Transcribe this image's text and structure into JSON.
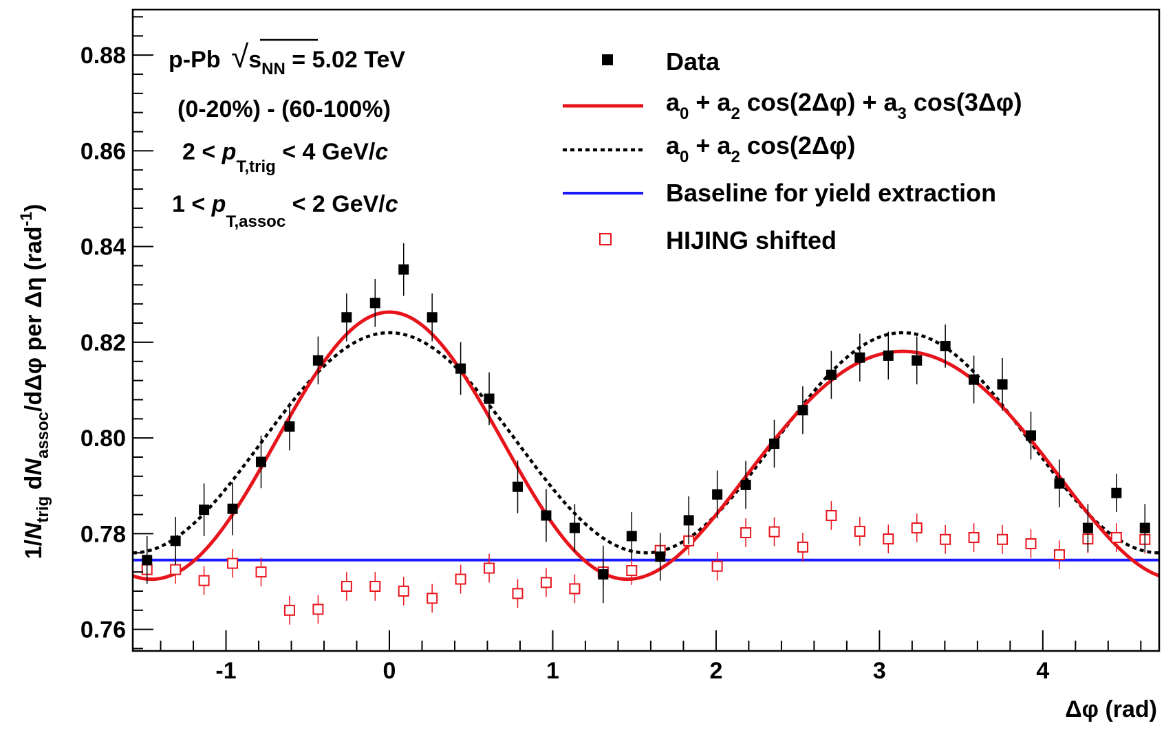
{
  "chart_data": {
    "type": "scatter",
    "title": "",
    "xlabel": "Δφ (rad)",
    "ylabel": "1/N_trig dN_assoc/dΔφ per Δη (rad^-1)",
    "xlim": [
      -1.5708,
      4.7124
    ],
    "ylim": [
      0.7555,
      0.8895
    ],
    "xticks": [
      -1,
      0,
      1,
      2,
      3,
      4
    ],
    "xtick_labels": [
      "-1",
      "0",
      "1",
      "2",
      "3",
      "4"
    ],
    "yticks": [
      0.76,
      0.78,
      0.8,
      0.82,
      0.84,
      0.86,
      0.88
    ],
    "ytick_labels": [
      "0.76",
      "0.78",
      "0.80",
      "0.82",
      "0.84",
      "0.86",
      "0.88"
    ],
    "grid": false,
    "legend_position": "top-right",
    "annotations": {
      "system": "p-Pb",
      "energy_symbol": "s",
      "energy_subscript": "NN",
      "energy_value": " = 5.02 TeV",
      "centrality": "(0-20%) - (60-100%)",
      "trig_left": "2 < ",
      "trig_p": "p",
      "trig_sub": "T,trig",
      "trig_right": " < 4 GeV/",
      "trig_c": "c",
      "assoc_left": "1 < ",
      "assoc_p": "p",
      "assoc_sub": "T,assoc",
      "assoc_right": " < 2 GeV/",
      "assoc_c": "c"
    },
    "axis_text": {
      "x_title": "Δφ (rad)",
      "y_prefix": "1/",
      "y_N1": "N",
      "y_sub1": "trig",
      "y_mid": " d",
      "y_N2": "N",
      "y_sub2": "assoc",
      "y_rest": "/dΔφ per Δη (rad",
      "y_sup": "-1",
      "y_close": ")"
    },
    "legend": {
      "data": "Data",
      "fit_full_a0": "a",
      "fit_full_s0": "0",
      "fit_full_mid": " + a",
      "fit_full_s2": "2",
      "fit_full_cos2": " cos(2Δφ) + a",
      "fit_full_s3": "3",
      "fit_full_cos3": " cos(3Δφ)",
      "fit_v2_a0": "a",
      "fit_v2_s0": "0",
      "fit_v2_mid": " + a",
      "fit_v2_s2": "2",
      "fit_v2_cos2": " cos(2Δφ)",
      "baseline": "Baseline for yield extraction",
      "hijing": "HIJING shifted"
    },
    "colors": {
      "data": "#000000",
      "fit_full": "#e8141c",
      "fit_v2": "#000000",
      "baseline": "#1a1aff",
      "hijing": "#e8141c"
    },
    "fits": {
      "full": {
        "a0": 0.7967,
        "a2": 0.0255,
        "a3": 0.0041
      },
      "v2_only": {
        "a0": 0.799,
        "a2": 0.023
      },
      "baseline": 0.7745
    },
    "series": [
      {
        "name": "Data",
        "x": [
          -1.4835,
          -1.309,
          -1.1345,
          -0.9599,
          -0.7854,
          -0.6109,
          -0.4363,
          -0.2618,
          -0.0873,
          0.0873,
          0.2618,
          0.4363,
          0.6109,
          0.7854,
          0.9599,
          1.1345,
          1.309,
          1.4835,
          1.6581,
          1.8326,
          2.0071,
          2.1817,
          2.3562,
          2.5307,
          2.7053,
          2.8798,
          3.0543,
          3.2289,
          3.4034,
          3.5779,
          3.7525,
          3.927,
          4.1015,
          4.2761,
          4.4506,
          4.6251
        ],
        "y": [
          0.7745,
          0.7785,
          0.785,
          0.7852,
          0.795,
          0.8024,
          0.8162,
          0.8252,
          0.8282,
          0.8352,
          0.8252,
          0.8145,
          0.8082,
          0.7898,
          0.7838,
          0.7812,
          0.7715,
          0.7795,
          0.7752,
          0.7828,
          0.7882,
          0.7902,
          0.7988,
          0.8058,
          0.8132,
          0.8168,
          0.8172,
          0.8162,
          0.8192,
          0.8122,
          0.8112,
          0.8005,
          0.7905,
          0.7812,
          0.7885,
          0.7812
        ],
        "err": [
          0.005,
          0.005,
          0.0055,
          0.0055,
          0.0055,
          0.005,
          0.005,
          0.005,
          0.005,
          0.0055,
          0.005,
          0.0055,
          0.0055,
          0.0055,
          0.0055,
          0.005,
          0.006,
          0.005,
          0.005,
          0.005,
          0.005,
          0.005,
          0.005,
          0.005,
          0.005,
          0.005,
          0.005,
          0.005,
          0.0045,
          0.005,
          0.0055,
          0.005,
          0.005,
          0.005,
          0.004,
          0.005
        ]
      },
      {
        "name": "HIJING shifted",
        "x": [
          -1.4835,
          -1.309,
          -1.1345,
          -0.9599,
          -0.7854,
          -0.6109,
          -0.4363,
          -0.2618,
          -0.0873,
          0.0873,
          0.2618,
          0.4363,
          0.6109,
          0.7854,
          0.9599,
          1.1345,
          1.309,
          1.4835,
          1.6581,
          1.8326,
          2.0071,
          2.1817,
          2.3562,
          2.5307,
          2.7053,
          2.8798,
          3.0543,
          3.2289,
          3.4034,
          3.5779,
          3.7525,
          3.927,
          4.1015,
          4.2761,
          4.4506,
          4.6251
        ],
        "y": [
          0.7725,
          0.7725,
          0.7702,
          0.7738,
          0.772,
          0.764,
          0.7642,
          0.769,
          0.769,
          0.768,
          0.7665,
          0.7705,
          0.7728,
          0.7675,
          0.7698,
          0.7685,
          0.772,
          0.7723,
          0.7765,
          0.7785,
          0.7732,
          0.7802,
          0.7804,
          0.7772,
          0.7838,
          0.7805,
          0.7789,
          0.7812,
          0.7788,
          0.7792,
          0.7788,
          0.7779,
          0.7756,
          0.7789,
          0.7792,
          0.7788
        ],
        "err": [
          0.003,
          0.003,
          0.003,
          0.003,
          0.003,
          0.003,
          0.003,
          0.003,
          0.003,
          0.003,
          0.003,
          0.003,
          0.003,
          0.003,
          0.003,
          0.003,
          0.003,
          0.003,
          0.003,
          0.003,
          0.003,
          0.003,
          0.003,
          0.003,
          0.003,
          0.003,
          0.003,
          0.003,
          0.003,
          0.003,
          0.003,
          0.003,
          0.003,
          0.003,
          0.003,
          0.003
        ]
      }
    ]
  }
}
